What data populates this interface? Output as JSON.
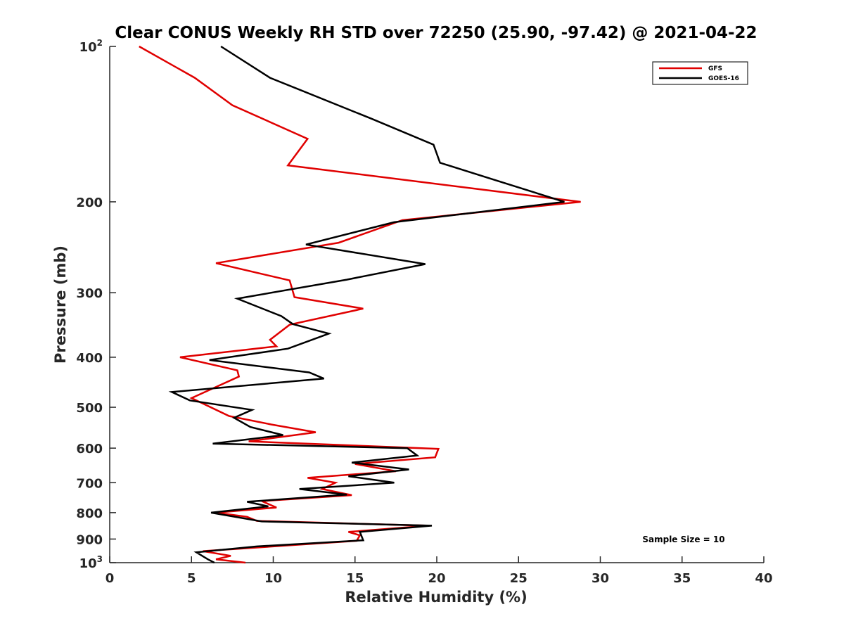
{
  "chart_data": {
    "type": "line",
    "title": "Clear CONUS Weekly RH STD over 72250 (25.90, -97.42) @ 2021-04-22",
    "xlabel": "Relative Humidity (%)",
    "ylabel": "Pressure (mb)",
    "xlim": [
      0,
      40
    ],
    "ylim": [
      100,
      1000
    ],
    "y_scale": "log",
    "y_reversed": true,
    "x_ticks": [
      "0",
      "5",
      "10",
      "15",
      "20",
      "25",
      "30",
      "35",
      "40"
    ],
    "y_ticks": [
      {
        "value": 100,
        "base": "10",
        "exp": "2"
      },
      {
        "value": 200,
        "label": "200"
      },
      {
        "value": 300,
        "label": "300"
      },
      {
        "value": 400,
        "label": "400"
      },
      {
        "value": 500,
        "label": "500"
      },
      {
        "value": 600,
        "label": "600"
      },
      {
        "value": 700,
        "label": "700"
      },
      {
        "value": 800,
        "label": "800"
      },
      {
        "value": 900,
        "label": "900"
      },
      {
        "value": 1000,
        "base": "10",
        "exp": "3"
      }
    ],
    "legend_position": "top-right",
    "annotation": "Sample Size = 10",
    "series": [
      {
        "name": "GFS",
        "color": "#e00000",
        "points": [
          [
            1.8,
            100
          ],
          [
            5.2,
            115
          ],
          [
            7.5,
            130
          ],
          [
            12.1,
            151
          ],
          [
            10.9,
            170
          ],
          [
            28.8,
            200
          ],
          [
            17.9,
            217
          ],
          [
            14.0,
            240
          ],
          [
            6.5,
            263
          ],
          [
            11.0,
            284
          ],
          [
            11.3,
            306
          ],
          [
            15.5,
            322
          ],
          [
            11.0,
            346
          ],
          [
            9.8,
            370
          ],
          [
            10.2,
            381
          ],
          [
            4.3,
            400
          ],
          [
            7.8,
            424
          ],
          [
            7.9,
            436
          ],
          [
            5.0,
            480
          ],
          [
            7.3,
            520
          ],
          [
            9.9,
            540
          ],
          [
            12.6,
            559
          ],
          [
            8.5,
            582
          ],
          [
            20.1,
            602
          ],
          [
            19.9,
            625
          ],
          [
            15.0,
            644
          ],
          [
            17.5,
            665
          ],
          [
            12.1,
            685
          ],
          [
            13.8,
            700
          ],
          [
            13.0,
            720
          ],
          [
            14.8,
            740
          ],
          [
            9.3,
            760
          ],
          [
            10.2,
            782
          ],
          [
            6.5,
            800
          ],
          [
            8.4,
            815
          ],
          [
            9.0,
            830
          ],
          [
            19.5,
            848
          ],
          [
            14.6,
            872
          ],
          [
            15.3,
            885
          ],
          [
            15.1,
            907
          ],
          [
            5.7,
            950
          ],
          [
            7.4,
            970
          ],
          [
            6.5,
            985
          ],
          [
            8.3,
            1000
          ]
        ]
      },
      {
        "name": "GOES-16",
        "color": "#000000",
        "points": [
          [
            6.8,
            100
          ],
          [
            9.8,
            115
          ],
          [
            16.0,
            138
          ],
          [
            19.8,
            155
          ],
          [
            20.2,
            168
          ],
          [
            27.8,
            200
          ],
          [
            17.4,
            219
          ],
          [
            12.0,
            242
          ],
          [
            19.3,
            264
          ],
          [
            14.5,
            283
          ],
          [
            7.8,
            308
          ],
          [
            10.5,
            333
          ],
          [
            11.2,
            345
          ],
          [
            13.4,
            360
          ],
          [
            10.9,
            385
          ],
          [
            6.1,
            405
          ],
          [
            12.2,
            428
          ],
          [
            13.1,
            440
          ],
          [
            3.8,
            467
          ],
          [
            4.9,
            485
          ],
          [
            8.7,
            506
          ],
          [
            7.6,
            524
          ],
          [
            8.6,
            546
          ],
          [
            10.6,
            566
          ],
          [
            6.3,
            588
          ],
          [
            18.2,
            600
          ],
          [
            18.8,
            620
          ],
          [
            14.8,
            640
          ],
          [
            18.3,
            660
          ],
          [
            14.6,
            680
          ],
          [
            17.4,
            700
          ],
          [
            11.6,
            720
          ],
          [
            14.5,
            738
          ],
          [
            8.4,
            762
          ],
          [
            9.7,
            778
          ],
          [
            6.2,
            800
          ],
          [
            9.3,
            832
          ],
          [
            19.7,
            848
          ],
          [
            15.3,
            872
          ],
          [
            15.5,
            905
          ],
          [
            9.0,
            930
          ],
          [
            5.3,
            955
          ],
          [
            6.0,
            985
          ],
          [
            6.4,
            1000
          ]
        ]
      }
    ]
  }
}
